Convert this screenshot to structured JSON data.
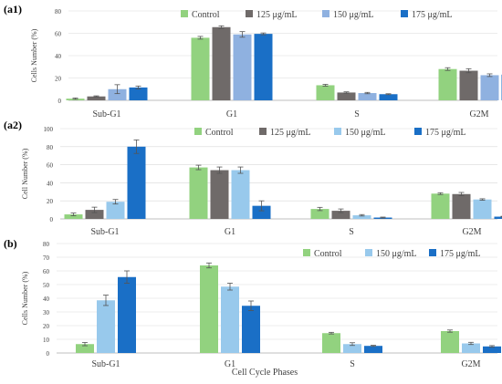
{
  "colors": {
    "control": "#92d27f",
    "c125": "#6f6a69",
    "c150_a1": "#8fb1e0",
    "c150": "#98c9ec",
    "c175": "#1a6fc6",
    "axis": "#bfbfbf",
    "grid": "#d9d9d9",
    "text": "#3f3f3f"
  },
  "chart_data": [
    {
      "panel_label": "(a1)",
      "type": "bar",
      "ylabel": "Cells Number (%)",
      "xlabel": "",
      "ylim": [
        0,
        80
      ],
      "yticks": [
        "0",
        "20",
        "40",
        "60",
        "80"
      ],
      "grid": true,
      "legend_position": "top-right",
      "categories": [
        "Sub-G1",
        "G1",
        "S",
        "G2M"
      ],
      "series": [
        {
          "name": "Control",
          "color_key": "control",
          "values": [
            1.5,
            56,
            13.5,
            28
          ],
          "errors": [
            0.6,
            1.2,
            0.8,
            1.2
          ]
        },
        {
          "name": "125 μg/mL",
          "color_key": "c125",
          "values": [
            3.5,
            65.5,
            7,
            26.5
          ],
          "errors": [
            0.5,
            1.2,
            0.6,
            1.8
          ]
        },
        {
          "name": "150  μg/mL",
          "color_key": "c150_a1",
          "values": [
            10,
            59,
            6.5,
            22.5
          ],
          "errors": [
            4,
            2.5,
            0.6,
            1.2
          ]
        },
        {
          "name": "175  μg/mL",
          "color_key": "c175",
          "values": [
            11.5,
            59.5,
            5.5,
            23
          ],
          "errors": [
            1.3,
            0.8,
            0.4,
            1.5
          ]
        }
      ]
    },
    {
      "panel_label": "(a2)",
      "type": "bar",
      "ylabel": "Cell Number (%)",
      "xlabel": "",
      "ylim": [
        0,
        100
      ],
      "yticks": [
        "0",
        "20",
        "40",
        "60",
        "80",
        "100"
      ],
      "grid": true,
      "legend_position": "top-right",
      "categories": [
        "Sub-G1",
        "G1",
        "S",
        "G2M"
      ],
      "series": [
        {
          "name": "Control",
          "color_key": "control",
          "values": [
            5,
            57,
            11,
            28
          ],
          "errors": [
            1.5,
            2.5,
            1.8,
            1.0
          ]
        },
        {
          "name": "125 μg/mL",
          "color_key": "c125",
          "values": [
            10,
            54,
            9,
            27.5
          ],
          "errors": [
            3,
            3.5,
            2,
            1.8
          ]
        },
        {
          "name": "150  μg/mL",
          "color_key": "c150",
          "values": [
            19,
            54,
            4,
            21.5
          ],
          "errors": [
            2.5,
            3.5,
            0.8,
            0.8
          ]
        },
        {
          "name": "175  μg/mL",
          "color_key": "c175",
          "values": [
            80,
            14.5,
            1.5,
            2.5
          ],
          "errors": [
            7.5,
            5.5,
            0.5,
            0.4
          ]
        }
      ]
    },
    {
      "panel_label": "(b)",
      "type": "bar",
      "ylabel": "Cells Number (%)",
      "xlabel": "Cell Cycle Phases",
      "ylim": [
        0,
        80
      ],
      "yticks": [
        "0",
        "10",
        "20",
        "30",
        "40",
        "50",
        "60",
        "70",
        "80"
      ],
      "grid": true,
      "legend_position": "top-right",
      "categories": [
        "Sub-G1",
        "G1",
        "S",
        "G2M"
      ],
      "series": [
        {
          "name": "Control",
          "color_key": "control",
          "values": [
            6.5,
            64,
            14.5,
            16
          ],
          "errors": [
            1.2,
            1.8,
            0.6,
            0.8
          ]
        },
        {
          "name": "150 μg/mL",
          "color_key": "c150",
          "values": [
            38.5,
            48.5,
            6.5,
            7
          ],
          "errors": [
            3.8,
            2.5,
            1.0,
            0.8
          ]
        },
        {
          "name": "175  μg/mL",
          "color_key": "c175",
          "values": [
            55.5,
            34.5,
            5.2,
            4.8
          ],
          "errors": [
            4.5,
            3.5,
            0.4,
            0.6
          ]
        }
      ]
    }
  ]
}
